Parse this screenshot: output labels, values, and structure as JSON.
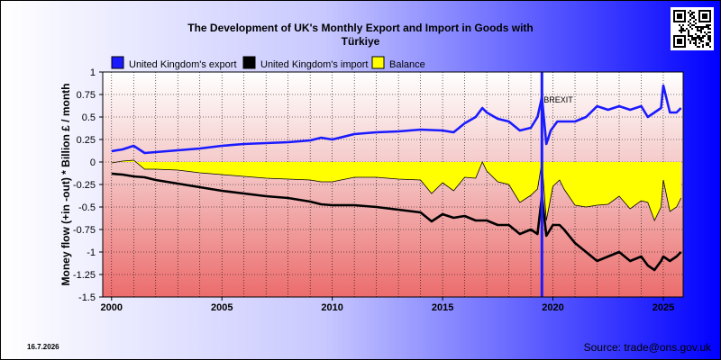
{
  "page": {
    "date": "16.7.2026",
    "source": "Source: trade@ons.gov.uk"
  },
  "colors": {
    "export": "#1a1aff",
    "import": "#000000",
    "balance": "#ffff00",
    "brexit": "#1a1aff"
  },
  "chart_data": {
    "type": "line",
    "title": "The Development of UK's Monthly Export and Import in Goods with",
    "title_line2": "Türkiye",
    "ylabel": "Money flow (+in -out) * Billion £ / month",
    "xlabel": "",
    "xlim": [
      1999.6,
      2025.9
    ],
    "ylim": [
      -1.5,
      1
    ],
    "x_ticks": [
      2000,
      2005,
      2010,
      2015,
      2020,
      2025
    ],
    "x_tick_labels": [
      "2000",
      "2005",
      "2010",
      "2015",
      "2020",
      "2025"
    ],
    "y_ticks": [
      1,
      0.75,
      0.5,
      0.25,
      0,
      -0.25,
      -0.5,
      -0.75,
      -1,
      -1.25,
      -1.5
    ],
    "y_tick_labels": [
      "1",
      "0.75",
      "0.5",
      "0.25",
      "0",
      "-0.25",
      "-0.5",
      "-0.75",
      "-1",
      "-1.25",
      "-1.5"
    ],
    "grid": true,
    "legend_position": "top-left",
    "annotations": [
      {
        "label": "BREXIT",
        "x": 2019.5
      }
    ],
    "series": [
      {
        "name": "United Kingdom's export",
        "x": [
          2000,
          2000.5,
          2001,
          2001.5,
          2002,
          2003,
          2004,
          2005,
          2006,
          2007,
          2008,
          2009,
          2009.5,
          2010,
          2011,
          2012,
          2013,
          2014,
          2015,
          2015.5,
          2016,
          2016.5,
          2016.8,
          2017,
          2017.5,
          2018,
          2018.5,
          2019,
          2019.3,
          2019.5,
          2019.7,
          2019.9,
          2020.2,
          2020.5,
          2021,
          2021.5,
          2022,
          2022.5,
          2023,
          2023.5,
          2024,
          2024.3,
          2024.6,
          2024.9,
          2025,
          2025.3,
          2025.6,
          2025.8
        ],
        "values": [
          0.12,
          0.14,
          0.18,
          0.1,
          0.11,
          0.13,
          0.15,
          0.18,
          0.2,
          0.21,
          0.22,
          0.24,
          0.27,
          0.25,
          0.31,
          0.33,
          0.34,
          0.36,
          0.35,
          0.33,
          0.43,
          0.5,
          0.6,
          0.55,
          0.48,
          0.45,
          0.35,
          0.38,
          0.5,
          0.72,
          0.2,
          0.35,
          0.45,
          0.45,
          0.45,
          0.5,
          0.62,
          0.58,
          0.62,
          0.58,
          0.62,
          0.5,
          0.55,
          0.6,
          0.85,
          0.55,
          0.55,
          0.6
        ]
      },
      {
        "name": "United Kingdom's import",
        "x": [
          2000,
          2000.5,
          2001,
          2001.5,
          2002,
          2003,
          2004,
          2005,
          2006,
          2007,
          2008,
          2009,
          2009.5,
          2010,
          2011,
          2012,
          2013,
          2014,
          2014.5,
          2015,
          2015.5,
          2016,
          2016.5,
          2017,
          2017.5,
          2018,
          2018.5,
          2019,
          2019.3,
          2019.5,
          2019.7,
          2020,
          2020.3,
          2020.5,
          2021,
          2021.5,
          2022,
          2022.5,
          2023,
          2023.5,
          2024,
          2024.3,
          2024.6,
          2024.9,
          2025,
          2025.3,
          2025.6,
          2025.8
        ],
        "values": [
          -0.13,
          -0.14,
          -0.16,
          -0.17,
          -0.2,
          -0.24,
          -0.28,
          -0.32,
          -0.35,
          -0.38,
          -0.4,
          -0.44,
          -0.47,
          -0.48,
          -0.48,
          -0.5,
          -0.53,
          -0.56,
          -0.66,
          -0.58,
          -0.62,
          -0.6,
          -0.65,
          -0.65,
          -0.7,
          -0.7,
          -0.8,
          -0.75,
          -0.8,
          -0.38,
          -0.82,
          -0.7,
          -0.7,
          -0.75,
          -0.9,
          -1.0,
          -1.1,
          -1.05,
          -1.0,
          -1.1,
          -1.05,
          -1.15,
          -1.2,
          -1.1,
          -1.05,
          -1.1,
          -1.05,
          -1.0
        ]
      },
      {
        "name": "Balance",
        "x": [
          2000,
          2000.5,
          2001,
          2001.5,
          2002,
          2003,
          2004,
          2005,
          2006,
          2007,
          2008,
          2009,
          2009.5,
          2010,
          2011,
          2012,
          2013,
          2014,
          2014.5,
          2015,
          2015.5,
          2016,
          2016.5,
          2016.8,
          2017,
          2017.5,
          2018,
          2018.5,
          2019,
          2019.3,
          2019.5,
          2019.7,
          2020,
          2020.3,
          2020.5,
          2021,
          2021.5,
          2022,
          2022.5,
          2023,
          2023.5,
          2024,
          2024.3,
          2024.6,
          2024.9,
          2025,
          2025.3,
          2025.6,
          2025.8
        ],
        "values": [
          -0.01,
          0.01,
          0.02,
          -0.08,
          -0.08,
          -0.09,
          -0.12,
          -0.14,
          -0.16,
          -0.18,
          -0.19,
          -0.2,
          -0.22,
          -0.22,
          -0.17,
          -0.17,
          -0.19,
          -0.2,
          -0.35,
          -0.23,
          -0.32,
          -0.17,
          -0.18,
          0.0,
          -0.1,
          -0.22,
          -0.25,
          -0.45,
          -0.37,
          -0.3,
          0.0,
          -0.65,
          -0.27,
          -0.2,
          -0.3,
          -0.48,
          -0.5,
          -0.48,
          -0.47,
          -0.38,
          -0.52,
          -0.43,
          -0.45,
          -0.65,
          -0.5,
          -0.2,
          -0.55,
          -0.5,
          -0.4
        ]
      }
    ]
  }
}
